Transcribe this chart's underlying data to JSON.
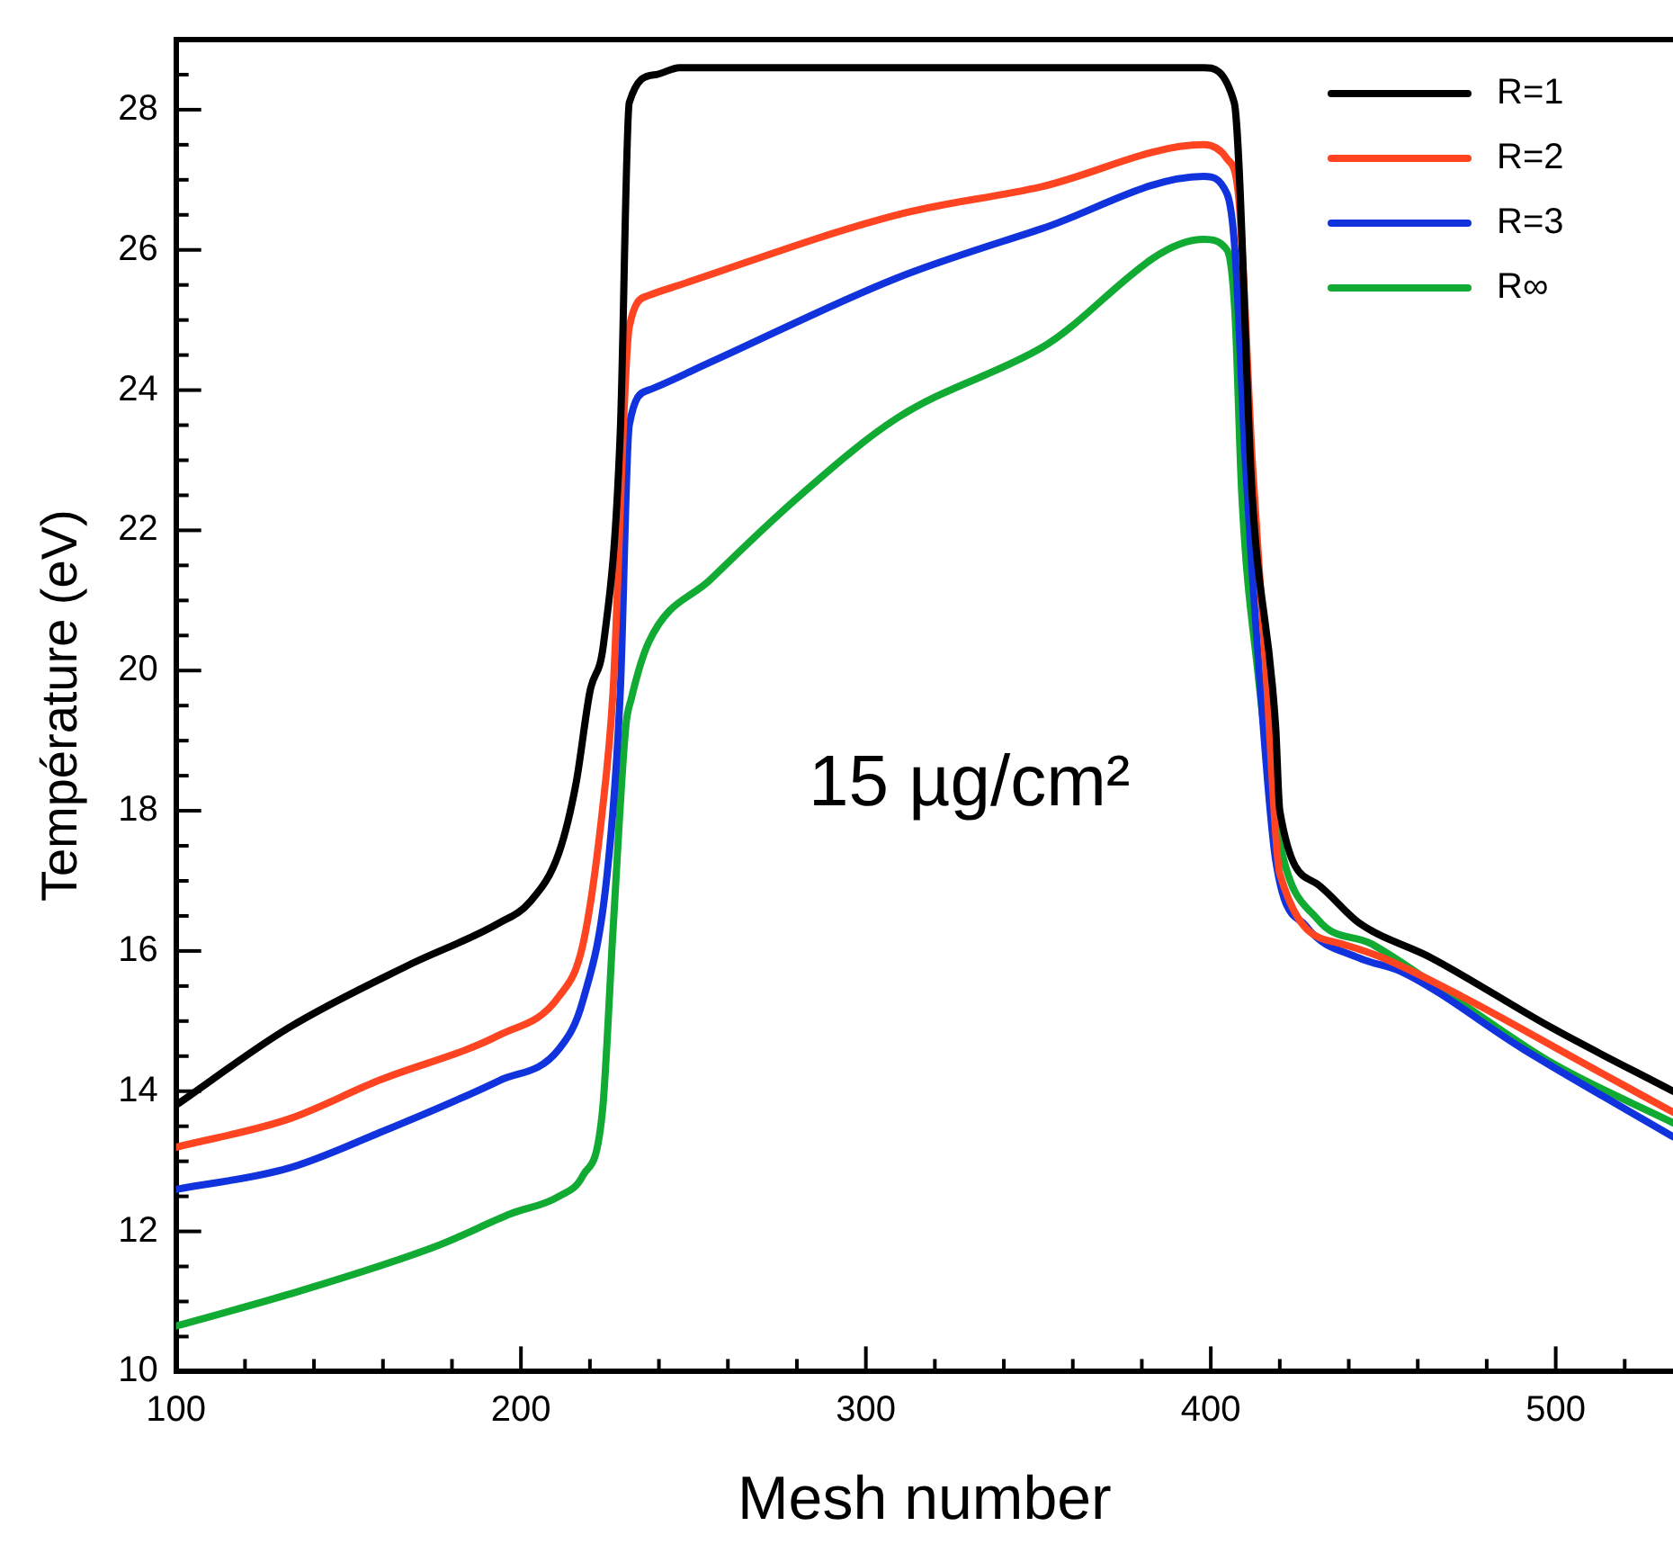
{
  "chart_data": {
    "type": "line",
    "xlabel": "Mesh number",
    "ylabel": "Température (eV)",
    "annotations": [
      "15 µg/cm²"
    ],
    "xlim": [
      100,
      534
    ],
    "ylim": [
      10,
      29
    ],
    "xticks": [
      100,
      {
        "value": 120,
        "label": null
      },
      {
        "value": 140,
        "label": null
      },
      {
        "value": 160,
        "label": null
      },
      {
        "value": 180,
        "label": null
      },
      200,
      {
        "value": 220,
        "label": null
      },
      {
        "value": 240,
        "label": null
      },
      {
        "value": 260,
        "label": null
      },
      {
        "value": 280,
        "label": null
      },
      300,
      {
        "value": 320,
        "label": null
      },
      {
        "value": 340,
        "label": null
      },
      {
        "value": 360,
        "label": null
      },
      {
        "value": 380,
        "label": null
      },
      400,
      {
        "value": 420,
        "label": null
      },
      {
        "value": 440,
        "label": null
      },
      {
        "value": 460,
        "label": null
      },
      {
        "value": 480,
        "label": null
      },
      500,
      {
        "value": 520,
        "label": null
      }
    ],
    "yticks": [
      10,
      {
        "value": 10.5,
        "label": null
      },
      {
        "value": 11,
        "label": null
      },
      {
        "value": 11.5,
        "label": null
      },
      12,
      {
        "value": 12.5,
        "label": null
      },
      {
        "value": 13,
        "label": null
      },
      {
        "value": 13.5,
        "label": null
      },
      14,
      {
        "value": 14.5,
        "label": null
      },
      {
        "value": 15,
        "label": null
      },
      {
        "value": 15.5,
        "label": null
      },
      16,
      {
        "value": 16.5,
        "label": null
      },
      {
        "value": 17,
        "label": null
      },
      {
        "value": 17.5,
        "label": null
      },
      18,
      {
        "value": 18.5,
        "label": null
      },
      {
        "value": 19,
        "label": null
      },
      {
        "value": 19.5,
        "label": null
      },
      20,
      {
        "value": 20.5,
        "label": null
      },
      {
        "value": 21,
        "label": null
      },
      {
        "value": 21.5,
        "label": null
      },
      22,
      {
        "value": 22.5,
        "label": null
      },
      {
        "value": 23,
        "label": null
      },
      {
        "value": 23.5,
        "label": null
      },
      24,
      {
        "value": 24.5,
        "label": null
      },
      {
        "value": 25,
        "label": null
      },
      {
        "value": 25.5,
        "label": null
      },
      26,
      {
        "value": 26.5,
        "label": null
      },
      {
        "value": 27,
        "label": null
      },
      {
        "value": 27.5,
        "label": null
      },
      28,
      {
        "value": 28.5,
        "label": null
      }
    ],
    "grid": false,
    "legend": "top right",
    "marker": "none",
    "line_style": "solid",
    "series": [
      {
        "name": "R=1",
        "color": "#000000",
        "x": [
          100,
          132.5,
          167.5,
          193.7,
          202.6,
          211,
          216,
          220,
          224,
          228.8,
          231.4,
          239,
          246,
          300,
          350,
          398,
          406.8,
          412,
          418.8,
          420,
          431,
          443,
          464,
          499,
          534
        ],
        "values": [
          13.8,
          14.9,
          15.8,
          16.4,
          16.7,
          17.4,
          18.4,
          19.7,
          20.4,
          23.4,
          28.1,
          28.5,
          28.6,
          28.6,
          28.6,
          28.6,
          28.1,
          22.5,
          19.2,
          18,
          16.95,
          16.4,
          15.9,
          14.9,
          14
        ]
      },
      {
        "name": "R=2",
        "color": "#ff4422",
        "x": [
          100,
          132.5,
          158.6,
          193.7,
          211,
          218,
          223.6,
          226.7,
          231.4,
          237,
          246,
          309,
          350.8,
          398,
          404.7,
          408,
          412,
          416,
          420,
          438,
          450,
          472.8,
          508,
          534
        ],
        "values": [
          13.2,
          13.6,
          14.15,
          14.8,
          15.35,
          16.1,
          18,
          19.7,
          24.9,
          25.35,
          25.5,
          26.5,
          26.9,
          27.5,
          27.3,
          26.8,
          23,
          20,
          17.1,
          16.1,
          15.9,
          15.35,
          14.4,
          13.7
        ]
      },
      {
        "name": "R=3",
        "color": "#1133dd",
        "x": [
          100,
          132.5,
          158.6,
          193.7,
          211,
          218,
          225,
          228.8,
          231.4,
          237,
          255,
          309,
          350.8,
          398,
          404.7,
          407,
          410,
          414,
          418.8,
          427.7,
          443,
          455.5,
          490.6,
          534
        ],
        "values": [
          12.6,
          12.9,
          13.4,
          14.15,
          14.6,
          15.3,
          17.1,
          19.7,
          23.5,
          24,
          24.4,
          25.6,
          26.3,
          27.05,
          26.8,
          26,
          23,
          20,
          17.3,
          16.35,
          15.9,
          15.7,
          14.6,
          13.35
        ]
      },
      {
        "name": "R∞",
        "color": "#11aa33",
        "x": [
          100,
          132.5,
          176,
          197,
          211,
          218,
          223.6,
          226.7,
          230.4,
          232,
          237,
          255,
          281,
          309,
          350.8,
          398,
          404.7,
          407,
          409,
          413.6,
          420,
          431,
          446.6,
          472.8,
          499,
          534
        ],
        "values": [
          10.65,
          11.1,
          11.8,
          12.25,
          12.5,
          12.8,
          13.7,
          16.3,
          19.2,
          19.6,
          20.4,
          21.3,
          22.5,
          23.6,
          24.6,
          26.15,
          26,
          25.1,
          22.5,
          20,
          17.55,
          16.45,
          16.1,
          15.25,
          14.4,
          13.55
        ]
      }
    ]
  }
}
